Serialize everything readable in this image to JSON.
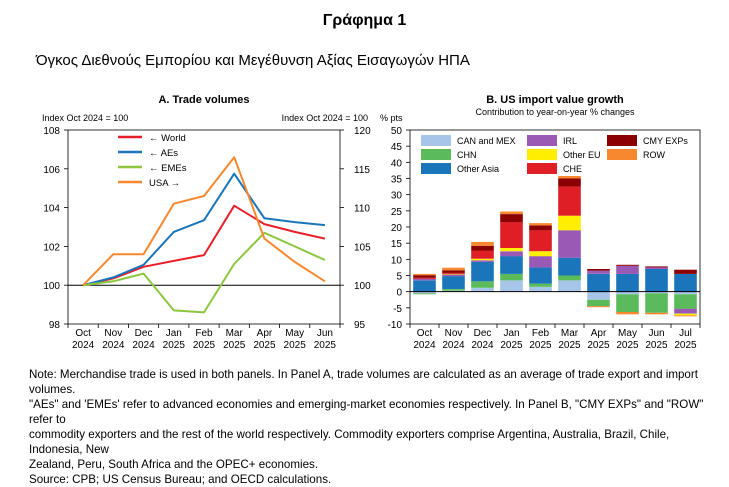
{
  "figure": {
    "title": "Γράφημα 1",
    "subtitle": "Όγκος Διεθνούς Εμπορίου και Μεγέθυνση Αξίας Εισαγωγών ΗΠΑ",
    "note_lines": [
      "Note: Merchandise trade is used in both panels. In Panel A, trade volumes are calculated as an average of trade export and import volumes.",
      "\"AEs\" and 'EMEs' refer to advanced economies and emerging-market economies respectively. In Panel B, \"CMY EXPs\" and \"ROW\" refer to",
      "commodity exporters and the rest of the world respectively. Commodity exporters comprise Argentina, Australia, Brazil, Chile, Indonesia, New",
      "Zealand, Peru, South Africa and the OPEC+ economies.",
      "Source: CPB; US Census Bureau; and OECD calculations."
    ]
  },
  "chart_data": [
    {
      "type": "line",
      "title": "A. Trade volumes",
      "left_axis_label": "Index Oct 2024 = 100",
      "right_axis_label": "Index Oct 2024 = 100",
      "categories": [
        [
          "Oct",
          "2024"
        ],
        [
          "Nov",
          "2024"
        ],
        [
          "Dec",
          "2024"
        ],
        [
          "Jan",
          "2025"
        ],
        [
          "Feb",
          "2025"
        ],
        [
          "Mar",
          "2025"
        ],
        [
          "Apr",
          "2025"
        ],
        [
          "May",
          "2025"
        ],
        [
          "Jun",
          "2025"
        ]
      ],
      "ylim_left": [
        98,
        108
      ],
      "yticks_left": [
        98,
        100,
        102,
        104,
        106,
        108
      ],
      "ylim_right": [
        95,
        120
      ],
      "yticks_right": [
        95,
        100,
        105,
        110,
        115,
        120
      ],
      "grid": false,
      "legend_position": "top-left",
      "series": [
        {
          "name": "← World",
          "axis": "left",
          "color": "#e8202a",
          "values": [
            100,
            100.35,
            100.95,
            101.25,
            101.55,
            104.1,
            103.15,
            102.75,
            102.4
          ]
        },
        {
          "name": "← AEs",
          "axis": "left",
          "color": "#1a75bb",
          "values": [
            100,
            100.4,
            101.05,
            102.75,
            103.35,
            105.75,
            103.45,
            103.25,
            103.1
          ]
        },
        {
          "name": "← EMEs",
          "axis": "left",
          "color": "#8cc63f",
          "values": [
            100,
            100.2,
            100.6,
            98.7,
            98.6,
            101.1,
            102.7,
            102.0,
            101.3
          ]
        },
        {
          "name": "USA →",
          "axis": "right",
          "color": "#f7882f",
          "values": [
            100,
            104.0,
            104.0,
            110.5,
            111.5,
            116.5,
            106.0,
            103.0,
            100.5
          ]
        }
      ]
    },
    {
      "type": "bar",
      "stacked": true,
      "title": "B. US import value growth",
      "subtitle": "Contribution to year-on-year % changes",
      "ylabel": "% pts",
      "categories": [
        [
          "Oct",
          "2024"
        ],
        [
          "Nov",
          "2024"
        ],
        [
          "Dec",
          "2024"
        ],
        [
          "Jan",
          "2025"
        ],
        [
          "Feb",
          "2025"
        ],
        [
          "Mar",
          "2025"
        ],
        [
          "Apr",
          "2025"
        ],
        [
          "May",
          "2025"
        ],
        [
          "Jun",
          "2025"
        ],
        [
          "Jul",
          "2025"
        ]
      ],
      "ylim": [
        -10,
        50
      ],
      "yticks": [
        -10,
        -5,
        0,
        5,
        10,
        15,
        20,
        25,
        30,
        35,
        40,
        45,
        50
      ],
      "grid": false,
      "legend_position": "top",
      "series": [
        {
          "name": "CAN and MEX",
          "color": "#a7c5e8",
          "values": [
            -0.5,
            0.3,
            1.2,
            3.5,
            1.5,
            3.5,
            -2.5,
            -0.8,
            -0.5,
            -0.8
          ]
        },
        {
          "name": "CHN",
          "color": "#5bbb5b",
          "values": [
            -0.3,
            0.5,
            2.0,
            2.0,
            1.0,
            1.5,
            -2.0,
            -5.5,
            -6.0,
            -4.5
          ]
        },
        {
          "name": "Other Asia",
          "color": "#1a75bb",
          "values": [
            3.5,
            4.0,
            6.0,
            5.5,
            5.0,
            5.5,
            5.5,
            5.5,
            7.0,
            5.5
          ]
        },
        {
          "name": "IRL",
          "color": "#9b59b6",
          "values": [
            0.5,
            0.5,
            0.5,
            1.5,
            3.5,
            8.5,
            1.0,
            2.5,
            0.5,
            -1.5
          ]
        },
        {
          "name": "Other EU",
          "color": "#ffee00",
          "values": [
            0.0,
            0.2,
            0.5,
            1.0,
            1.5,
            4.5,
            0.0,
            0.0,
            0.0,
            -0.5
          ]
        },
        {
          "name": "CHE",
          "color": "#e01e26",
          "values": [
            0.3,
            0.3,
            2.5,
            8.0,
            6.5,
            9.0,
            0.0,
            0.0,
            0.0,
            0.0
          ]
        },
        {
          "name": "CMY EXPs",
          "color": "#8b0000",
          "values": [
            0.8,
            0.8,
            1.5,
            2.5,
            1.5,
            2.5,
            0.5,
            0.3,
            0.3,
            1.3
          ]
        },
        {
          "name": "ROW",
          "color": "#f7882f",
          "values": [
            0.4,
            0.8,
            1.2,
            0.8,
            0.7,
            1.5,
            -0.3,
            -0.7,
            -0.5,
            -0.3
          ]
        }
      ]
    }
  ]
}
